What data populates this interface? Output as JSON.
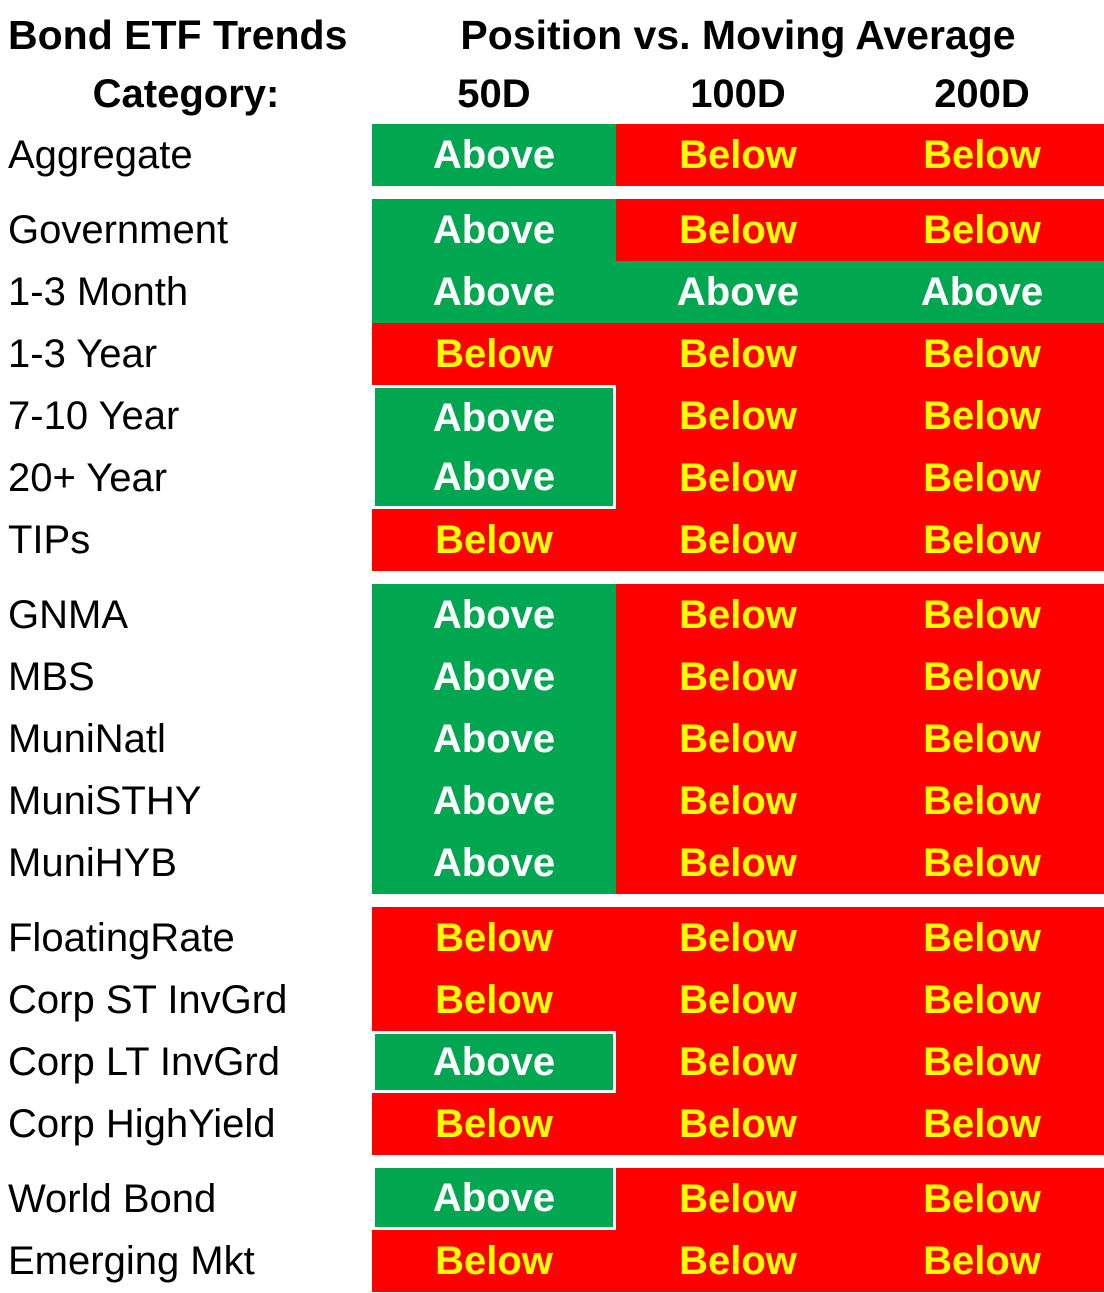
{
  "chart_data": {
    "type": "table",
    "title": "Bond ETF Trends",
    "subtitle": "Position vs. Moving Average",
    "category_header": "Category:",
    "columns": [
      "50D",
      "100D",
      "200D"
    ],
    "legend": {
      "above_label": "Above",
      "below_label": "Below"
    },
    "groups": [
      {
        "rows": [
          {
            "category": "Aggregate",
            "values": [
              "Above",
              "Below",
              "Below"
            ]
          }
        ]
      },
      {
        "rows": [
          {
            "category": "Government",
            "values": [
              "Above",
              "Below",
              "Below"
            ]
          },
          {
            "category": "1-3 Month",
            "values": [
              "Above",
              "Above",
              "Above"
            ]
          },
          {
            "category": "1-3 Year",
            "values": [
              "Below",
              "Below",
              "Below"
            ]
          },
          {
            "category": "7-10 Year",
            "values": [
              "Above",
              "Below",
              "Below"
            ]
          },
          {
            "category": "20+ Year",
            "values": [
              "Above",
              "Below",
              "Below"
            ]
          },
          {
            "category": "TIPs",
            "values": [
              "Below",
              "Below",
              "Below"
            ]
          }
        ]
      },
      {
        "rows": [
          {
            "category": "GNMA",
            "values": [
              "Above",
              "Below",
              "Below"
            ]
          },
          {
            "category": "MBS",
            "values": [
              "Above",
              "Below",
              "Below"
            ]
          },
          {
            "category": "MuniNatl",
            "values": [
              "Above",
              "Below",
              "Below"
            ]
          },
          {
            "category": "MuniSTHY",
            "values": [
              "Above",
              "Below",
              "Below"
            ]
          },
          {
            "category": "MuniHYB",
            "values": [
              "Above",
              "Below",
              "Below"
            ]
          }
        ]
      },
      {
        "rows": [
          {
            "category": "FloatingRate",
            "values": [
              "Below",
              "Below",
              "Below"
            ]
          },
          {
            "category": "Corp ST InvGrd",
            "values": [
              "Below",
              "Below",
              "Below"
            ]
          },
          {
            "category": "Corp LT InvGrd",
            "values": [
              "Above",
              "Below",
              "Below"
            ]
          },
          {
            "category": "Corp HighYield",
            "values": [
              "Below",
              "Below",
              "Below"
            ]
          }
        ]
      },
      {
        "rows": [
          {
            "category": "World Bond",
            "values": [
              "Above",
              "Below",
              "Below"
            ]
          },
          {
            "category": "Emerging Mkt",
            "values": [
              "Below",
              "Below",
              "Below"
            ]
          }
        ]
      }
    ]
  },
  "colors": {
    "above_bg": "#00A650",
    "above_text": "#FFFFFF",
    "below_bg": "#FF0000",
    "below_text": "#FFFF00",
    "header_text": "#000000",
    "background": "#FFFFFF"
  }
}
